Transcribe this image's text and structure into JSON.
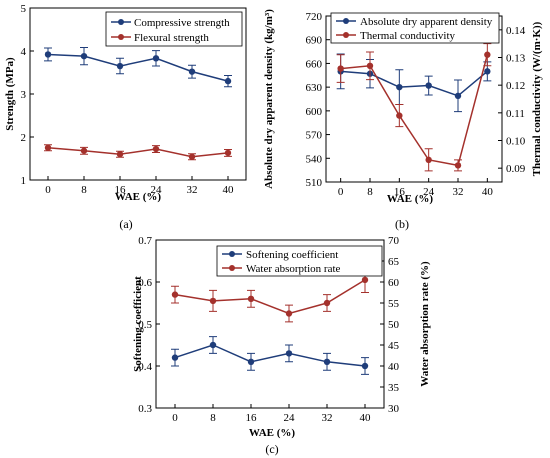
{
  "colors": {
    "blue": "#1f3d7a",
    "red": "#a4312c"
  },
  "chart_data": [
    {
      "type": "line",
      "panel_label": "(a)",
      "xlabel": "WAE (%)",
      "ylabel": "Strength (MPa)",
      "categories": [
        "0",
        "8",
        "16",
        "24",
        "32",
        "40"
      ],
      "x": [
        0,
        8,
        16,
        24,
        32,
        40
      ],
      "xlim": [
        -4,
        44
      ],
      "ylim": [
        1,
        5
      ],
      "yticks": [
        "1",
        "2",
        "3",
        "4",
        "5"
      ],
      "legend_position": "top-right",
      "series": [
        {
          "name": "Compressive strength",
          "color": "#1f3d7a",
          "values": [
            3.92,
            3.88,
            3.65,
            3.83,
            3.52,
            3.3
          ],
          "errors": [
            0.15,
            0.2,
            0.18,
            0.18,
            0.15,
            0.13
          ]
        },
        {
          "name": "Flexural strength",
          "color": "#a4312c",
          "values": [
            1.75,
            1.68,
            1.6,
            1.72,
            1.54,
            1.63
          ],
          "errors": [
            0.07,
            0.08,
            0.07,
            0.08,
            0.07,
            0.08
          ]
        }
      ]
    },
    {
      "type": "line",
      "panel_label": "(b)",
      "xlabel": "WAE (%)",
      "ylabel": "Absolute dry apparent density (kg/m³)",
      "y2label": "Thermal conductivity (W/(m·K))",
      "categories": [
        "0",
        "8",
        "16",
        "24",
        "32",
        "40"
      ],
      "x": [
        0,
        8,
        16,
        24,
        32,
        40
      ],
      "xlim": [
        -4,
        44
      ],
      "ylim": [
        510,
        720
      ],
      "yticks": [
        "510",
        "540",
        "570",
        "600",
        "630",
        "660",
        "690",
        "720"
      ],
      "y2lim": [
        0.085,
        0.145
      ],
      "y2ticks": [
        "0.09",
        "0.10",
        "0.11",
        "0.12",
        "0.13",
        "0.14"
      ],
      "legend_position": "top-right",
      "series": [
        {
          "name": "Absolute dry apparent density",
          "axis": "left",
          "color": "#1f3d7a",
          "values": [
            650,
            647,
            630,
            632,
            619,
            650
          ],
          "errors": [
            22,
            18,
            22,
            12,
            20,
            12
          ]
        },
        {
          "name": "Thermal conductivity",
          "axis": "right",
          "color": "#a4312c",
          "values": [
            0.126,
            0.127,
            0.109,
            0.093,
            0.091,
            0.131
          ],
          "errors": [
            0.005,
            0.005,
            0.004,
            0.004,
            0.002,
            0.004
          ]
        }
      ]
    },
    {
      "type": "line",
      "panel_label": "(c)",
      "xlabel": "WAE (%)",
      "ylabel": "Softening coefficient",
      "y2label": "Water absorption rate (%)",
      "categories": [
        "0",
        "8",
        "16",
        "24",
        "32",
        "40"
      ],
      "x": [
        0,
        8,
        16,
        24,
        32,
        40
      ],
      "xlim": [
        -4,
        44
      ],
      "ylim": [
        0.3,
        0.7
      ],
      "yticks": [
        "0.3",
        "0.4",
        "0.5",
        "0.6",
        "0.7"
      ],
      "y2lim": [
        30,
        70
      ],
      "y2ticks": [
        "30",
        "35",
        "40",
        "45",
        "50",
        "55",
        "60",
        "65",
        "70"
      ],
      "legend_position": "top-right",
      "series": [
        {
          "name": "Softening coefficient",
          "axis": "left",
          "color": "#1f3d7a",
          "values": [
            0.42,
            0.45,
            0.41,
            0.43,
            0.41,
            0.4
          ],
          "errors": [
            0.02,
            0.02,
            0.02,
            0.02,
            0.02,
            0.02
          ]
        },
        {
          "name": "Water absorption rate",
          "axis": "right",
          "color": "#a4312c",
          "values": [
            57,
            55.5,
            56,
            52.5,
            55,
            60.5
          ],
          "errors": [
            2,
            2.5,
            2,
            2,
            2,
            3
          ]
        }
      ]
    }
  ]
}
